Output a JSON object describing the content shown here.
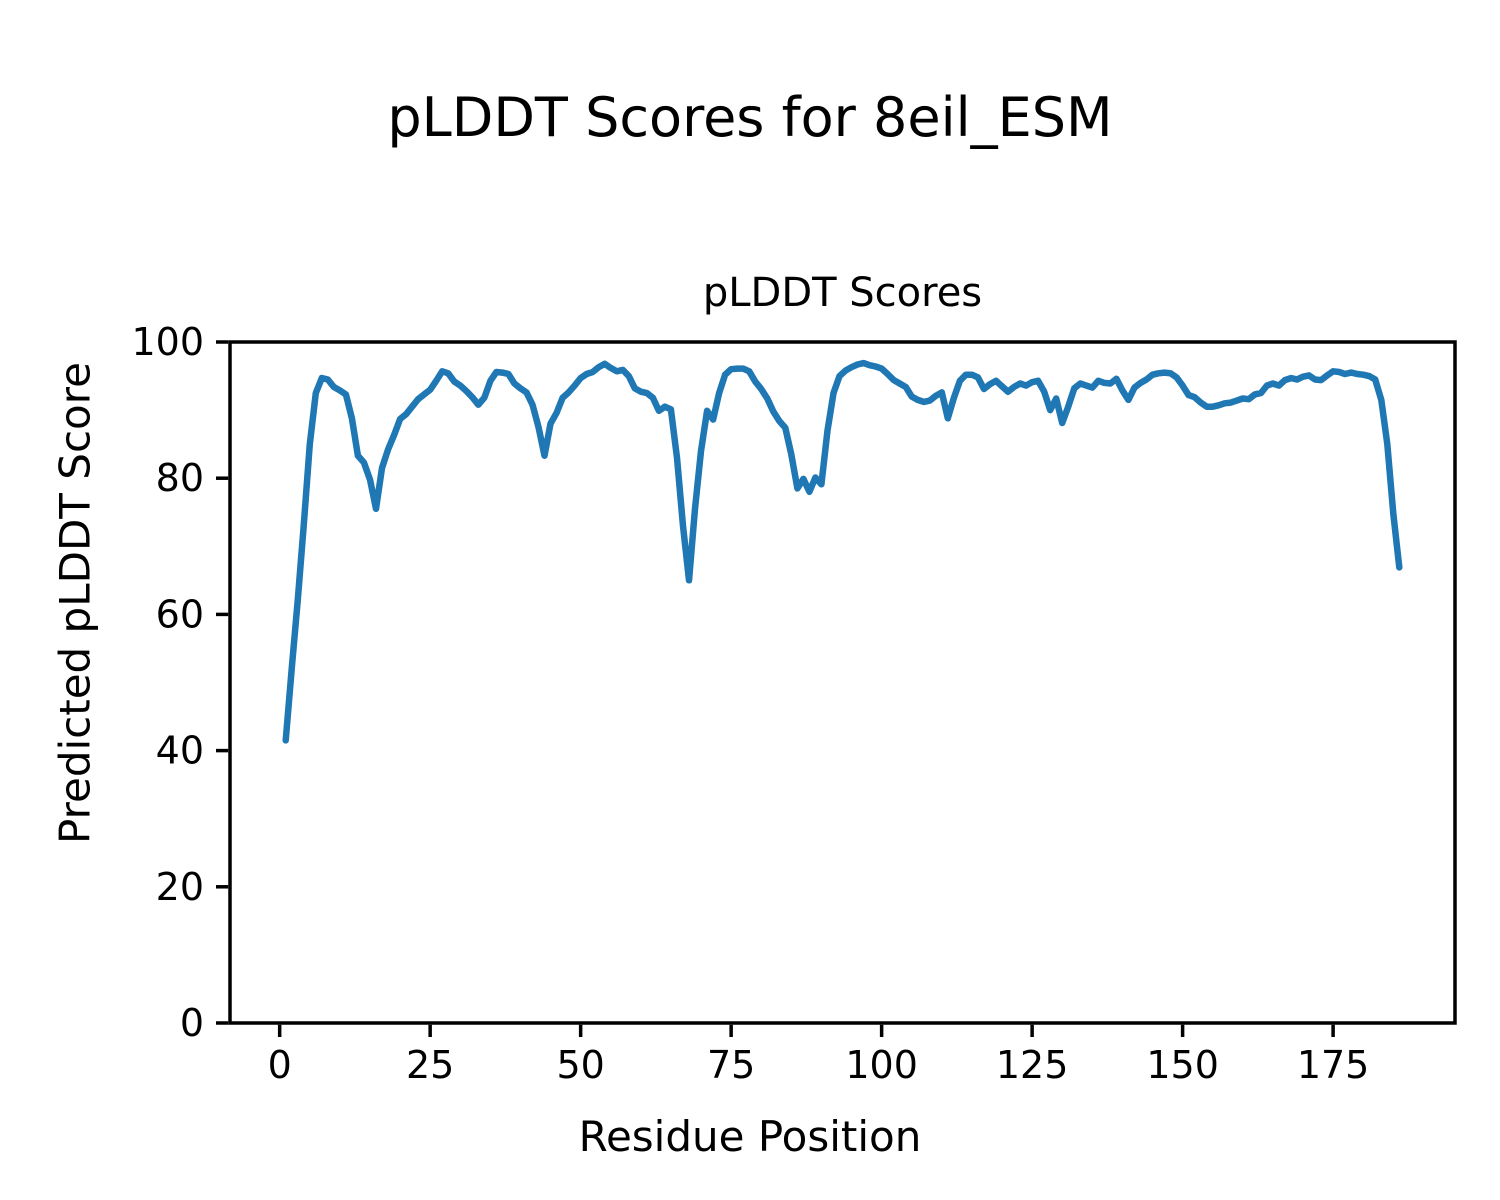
{
  "figure": {
    "suptitle": "pLDDT Scores for 8eil_ESM"
  },
  "chart_data": {
    "type": "line",
    "title": "pLDDT Scores",
    "xlabel": "Residue Position",
    "ylabel": "Predicted pLDDT Score",
    "xlim": [
      -8.25,
      195.25
    ],
    "ylim": [
      0,
      100
    ],
    "xticks": [
      0,
      25,
      50,
      75,
      100,
      125,
      150,
      175
    ],
    "yticks": [
      0,
      20,
      40,
      60,
      80,
      100
    ],
    "grid": false,
    "legend": "none",
    "line_color": "#1f77b4",
    "axis_color": "#000000",
    "series": [
      {
        "name": "pLDDT",
        "x_start": 1,
        "x_step": 1,
        "values": [
          41.5,
          52,
          62,
          73,
          85,
          92.5,
          94.7,
          94.5,
          93.4,
          92.9,
          92.3,
          88.8,
          83.3,
          82.3,
          79.8,
          75.5,
          81.5,
          84.2,
          86.3,
          88.7,
          89.4,
          90.5,
          91.6,
          92.3,
          93.0,
          94.3,
          95.7,
          95.4,
          94.2,
          93.6,
          92.8,
          91.9,
          90.8,
          91.8,
          94.3,
          95.6,
          95.5,
          95.3,
          93.9,
          93.2,
          92.6,
          90.8,
          87.5,
          83.3,
          88.0,
          89.6,
          91.8,
          92.6,
          93.6,
          94.7,
          95.3,
          95.6,
          96.3,
          96.8,
          96.2,
          95.7,
          95.9,
          95.0,
          93.2,
          92.7,
          92.5,
          91.8,
          89.9,
          90.5,
          90.1,
          83.0,
          73.0,
          65.0,
          75.5,
          84.0,
          89.9,
          88.6,
          92.5,
          95.2,
          96.0,
          96.1,
          96.1,
          95.7,
          94.2,
          93.1,
          91.7,
          89.8,
          88.4,
          87.4,
          83.5,
          78.5,
          79.9,
          78.0,
          80.1,
          79.1,
          87.0,
          92.5,
          95.0,
          95.8,
          96.3,
          96.7,
          96.9,
          96.6,
          96.4,
          96.1,
          95.3,
          94.4,
          93.9,
          93.4,
          92.0,
          91.5,
          91.2,
          91.4,
          92.1,
          92.6,
          88.8,
          91.8,
          94.3,
          95.2,
          95.2,
          94.8,
          93.1,
          93.8,
          94.3,
          93.5,
          92.7,
          93.4,
          93.9,
          93.6,
          94.1,
          94.3,
          92.7,
          90.0,
          91.7,
          88.1,
          90.5,
          93.2,
          93.9,
          93.6,
          93.3,
          94.3,
          94.0,
          93.9,
          94.6,
          92.9,
          91.5,
          93.3,
          94.0,
          94.5,
          95.2,
          95.4,
          95.5,
          95.4,
          94.8,
          93.6,
          92.2,
          91.9,
          91.1,
          90.5,
          90.5,
          90.7,
          91.0,
          91.1,
          91.4,
          91.7,
          91.6,
          92.3,
          92.5,
          93.6,
          93.9,
          93.6,
          94.4,
          94.7,
          94.5,
          94.9,
          95.1,
          94.5,
          94.4,
          95.1,
          95.7,
          95.6,
          95.3,
          95.5,
          95.3,
          95.2,
          95.0,
          94.5,
          91.5,
          85.0,
          74.8,
          66.9
        ]
      }
    ]
  }
}
